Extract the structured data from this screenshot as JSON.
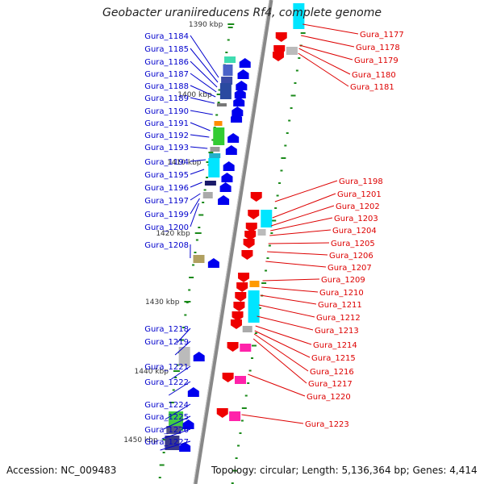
{
  "title": "Geobacter uraniireducens Rf4, complete genome",
  "footer": {
    "accession": "Accession: NC_009483",
    "topology": "Topology: circular; Length: 5,136,364 bp; Genes: 4,414"
  },
  "colors": {
    "plus_strand_label": "#0000cc",
    "minus_strand_label": "#dd0000",
    "tick": "#1a8a1a",
    "backbone": "#888888"
  },
  "scale_ticks": [
    "1390 kbp",
    "1400 kbp",
    "1410 kbp",
    "1420 kbp",
    "1430 kbp",
    "1440 kbp",
    "1450 kbp"
  ],
  "plus_genes": [
    "Gura_1184",
    "Gura_1185",
    "Gura_1186",
    "Gura_1187",
    "Gura_1188",
    "Gura_1189",
    "Gura_1190",
    "Gura_1191",
    "Gura_1192",
    "Gura_1193",
    "Gura_1194",
    "Gura_1195",
    "Gura_1196",
    "Gura_1197",
    "Gura_1199",
    "Gura_1200",
    "Gura_1208",
    "Gura_1218",
    "Gura_1219",
    "Gura_1221",
    "Gura_1222",
    "Gura_1224",
    "Gura_1225",
    "Gura_1226",
    "Gura_1227"
  ],
  "minus_genes": [
    "Gura_1177",
    "Gura_1178",
    "Gura_1179",
    "Gura_1180",
    "Gura_1181",
    "Gura_1198",
    "Gura_1201",
    "Gura_1202",
    "Gura_1203",
    "Gura_1204",
    "Gura_1205",
    "Gura_1206",
    "Gura_1207",
    "Gura_1209",
    "Gura_1210",
    "Gura_1211",
    "Gura_1212",
    "Gura_1213",
    "Gura_1214",
    "Gura_1215",
    "Gura_1216",
    "Gura_1217",
    "Gura_1220",
    "Gura_1223"
  ]
}
